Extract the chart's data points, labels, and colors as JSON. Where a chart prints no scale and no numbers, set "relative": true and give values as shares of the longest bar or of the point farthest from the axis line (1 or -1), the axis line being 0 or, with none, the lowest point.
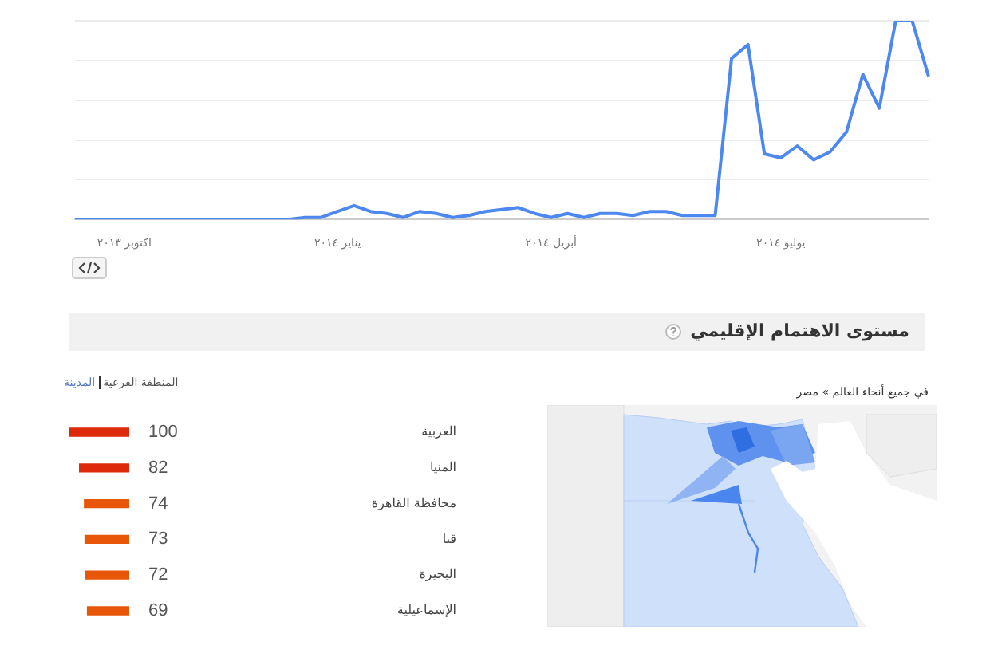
{
  "chart_data": [
    {
      "type": "line",
      "relative": true,
      "grid": "y",
      "legend": false,
      "marker": "none",
      "line_style": "solid",
      "categories": [
        null,
        null,
        null,
        "اكتوبر ٢٠١٣",
        null,
        null,
        null,
        null,
        null,
        null,
        null,
        null,
        null,
        null,
        null,
        null,
        "يناير ٢٠١٤",
        null,
        null,
        null,
        null,
        null,
        null,
        null,
        null,
        null,
        null,
        null,
        null,
        "أبريل ٢٠١٤",
        null,
        null,
        null,
        null,
        null,
        null,
        null,
        null,
        null,
        null,
        null,
        null,
        null,
        "يوليو ٢٠١٤",
        null,
        null,
        null,
        null,
        null,
        null,
        null,
        null,
        null
      ],
      "series": [
        {
          "color": "#4d88f0",
          "values": [
            0,
            0,
            0,
            0,
            0,
            0,
            0,
            0,
            0,
            0,
            0,
            0,
            0,
            0,
            0.01,
            0.01,
            0.04,
            0.07,
            0.04,
            0.03,
            0.01,
            0.04,
            0.03,
            0.01,
            0.02,
            0.04,
            0.05,
            0.06,
            0.03,
            0.01,
            0.03,
            0.01,
            0.03,
            0.03,
            0.02,
            0.04,
            0.04,
            0.02,
            0.02,
            0.02,
            0.81,
            0.88,
            0.33,
            0.31,
            0.37,
            0.3,
            0.34,
            0.44,
            0.73,
            0.56,
            1,
            1,
            0.72
          ]
        }
      ]
    },
    {
      "type": "bar",
      "orientation": "horizontal",
      "annotations": [
        "المنطقة الفرعية",
        "المدينة"
      ],
      "data_labels": true,
      "legend": false,
      "categories": [
        "العربية",
        "المنيا",
        "محافظة القاهرة",
        "قنا",
        "البحيرة",
        "الإسماعيلية"
      ],
      "values": [
        100,
        82,
        74,
        73,
        72,
        69
      ],
      "colors": [
        "#dc2a0a",
        "#dc2a0a",
        "#e8560a",
        "#e8560a",
        "#e8560a",
        "#e8560a"
      ]
    },
    {
      "type": "other",
      "title": "مستوى الاهتمام الإقليمي",
      "annotations": [
        "في جميع أنحاء العالم » مصر"
      ]
    }
  ]
}
